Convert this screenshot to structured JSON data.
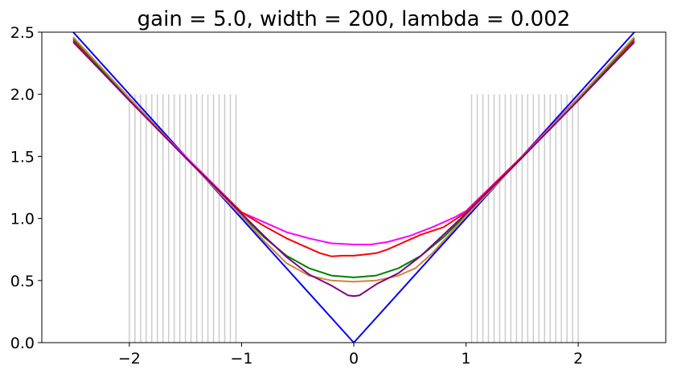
{
  "chart_data": {
    "type": "line",
    "title": "gain = 5.0, width = 200, lambda = 0.002",
    "xlabel": "",
    "ylabel": "",
    "xlim": [
      -2.78,
      2.78
    ],
    "ylim": [
      0,
      2.5
    ],
    "xticks": [
      -2,
      -1,
      0,
      1,
      2
    ],
    "xtick_labels": [
      "−2",
      "−1",
      "0",
      "1",
      "2"
    ],
    "yticks": [
      0,
      0.5,
      1,
      1.5,
      2,
      2.5
    ],
    "ytick_labels": [
      "0.0",
      "0.5",
      "1.0",
      "1.5",
      "2.0",
      "2.5"
    ],
    "grid": false,
    "vertical_lines": {
      "color": "#cccccc",
      "x": [
        -2.0,
        -1.95,
        -1.9,
        -1.85,
        -1.8,
        -1.75,
        -1.7,
        -1.65,
        -1.6,
        -1.55,
        -1.5,
        -1.45,
        -1.4,
        -1.35,
        -1.3,
        -1.25,
        -1.2,
        -1.15,
        -1.1,
        -1.05,
        1.05,
        1.1,
        1.15,
        1.2,
        1.25,
        1.3,
        1.35,
        1.4,
        1.45,
        1.5,
        1.55,
        1.6,
        1.65,
        1.7,
        1.75,
        1.8,
        1.85,
        1.9,
        1.95,
        2.0
      ]
    },
    "series": [
      {
        "color": "#0000ff",
        "x": [
          -2.5,
          0,
          2.5
        ],
        "y": [
          2.5,
          0.0,
          2.5
        ]
      },
      {
        "color": "#ff00ff",
        "x": [
          -2.5,
          -2.0,
          -1.5,
          -1.0,
          -0.8,
          -0.6,
          -0.4,
          -0.2,
          0.0,
          0.15,
          0.3,
          0.5,
          0.7,
          0.9,
          1.0,
          1.5,
          2.0,
          2.5
        ],
        "y": [
          2.44,
          1.96,
          1.5,
          1.05,
          0.97,
          0.89,
          0.84,
          0.8,
          0.79,
          0.79,
          0.81,
          0.86,
          0.93,
          1.01,
          1.06,
          1.5,
          1.97,
          2.44
        ]
      },
      {
        "color": "#ff0000",
        "x": [
          -2.5,
          -2.0,
          -1.5,
          -1.0,
          -0.8,
          -0.6,
          -0.4,
          -0.3,
          -0.2,
          -0.1,
          0.0,
          0.1,
          0.2,
          0.3,
          0.4,
          0.5,
          0.6,
          0.8,
          1.0,
          1.5,
          2.0,
          2.5
        ],
        "y": [
          2.43,
          1.95,
          1.49,
          1.05,
          0.94,
          0.84,
          0.76,
          0.72,
          0.695,
          0.7,
          0.7,
          0.71,
          0.72,
          0.75,
          0.79,
          0.83,
          0.87,
          0.93,
          1.05,
          1.5,
          1.96,
          2.43
        ]
      },
      {
        "color": "#008000",
        "x": [
          -2.5,
          -2.0,
          -1.5,
          -1.0,
          -0.8,
          -0.6,
          -0.4,
          -0.2,
          0.0,
          0.2,
          0.4,
          0.6,
          0.8,
          1.0,
          1.5,
          2.0,
          2.5
        ],
        "y": [
          2.45,
          1.96,
          1.49,
          1.03,
          0.85,
          0.7,
          0.6,
          0.54,
          0.525,
          0.54,
          0.6,
          0.7,
          0.85,
          1.03,
          1.49,
          1.96,
          2.45
        ]
      },
      {
        "color": "#cd853f",
        "x": [
          -2.5,
          -2.0,
          -1.5,
          -1.0,
          -0.8,
          -0.6,
          -0.4,
          -0.2,
          0.0,
          0.2,
          0.4,
          0.55,
          0.7,
          0.9,
          1.0,
          1.5,
          2.0,
          2.5
        ],
        "y": [
          2.46,
          1.97,
          1.49,
          1.02,
          0.82,
          0.64,
          0.54,
          0.5,
          0.49,
          0.5,
          0.54,
          0.6,
          0.72,
          0.92,
          1.02,
          1.49,
          1.97,
          2.46
        ]
      },
      {
        "color": "#800080",
        "x": [
          -2.5,
          -2.0,
          -1.5,
          -1.0,
          -0.8,
          -0.6,
          -0.4,
          -0.2,
          -0.05,
          0.0,
          0.05,
          0.2,
          0.4,
          0.6,
          0.8,
          1.0,
          1.5,
          2.0,
          2.5
        ],
        "y": [
          2.42,
          1.95,
          1.49,
          1.04,
          0.86,
          0.69,
          0.55,
          0.46,
          0.38,
          0.375,
          0.38,
          0.47,
          0.56,
          0.7,
          0.87,
          1.04,
          1.49,
          1.95,
          2.42
        ]
      }
    ]
  }
}
